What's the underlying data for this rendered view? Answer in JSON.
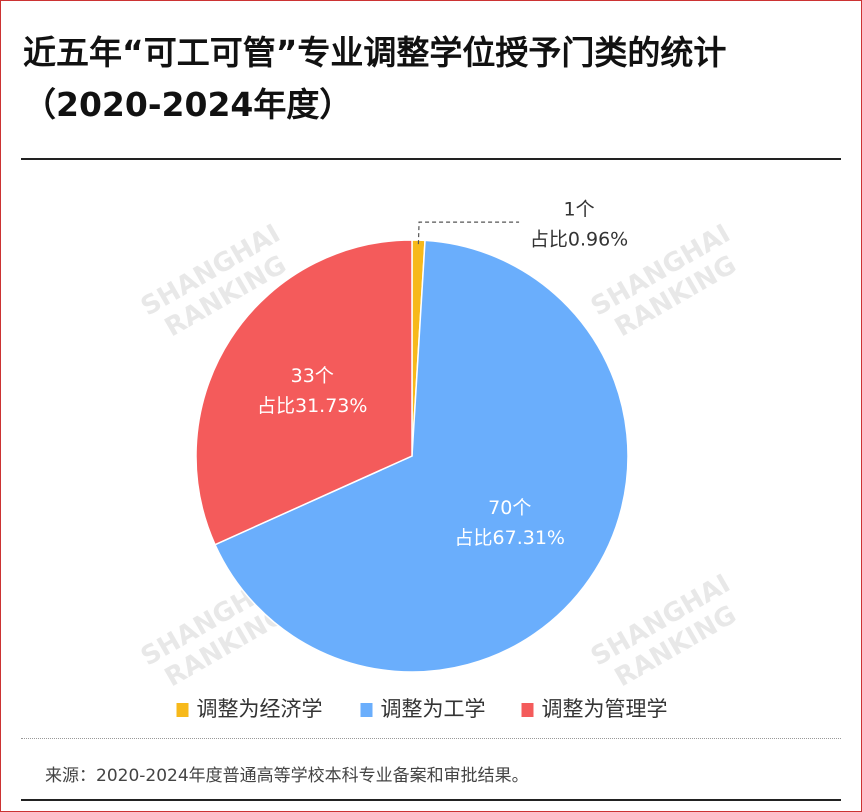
{
  "chart_data": {
    "type": "pie",
    "title": "近五年“可工可管”专业调整学位授予门类的统计（2020-2024年度）",
    "categories": [
      "调整为经济学",
      "调整为工学",
      "调整为管理学"
    ],
    "values": [
      1,
      70,
      33
    ],
    "value_labels": [
      "1个",
      "70个",
      "33个"
    ],
    "percent": [
      0.96,
      67.31,
      31.73
    ],
    "percent_labels": [
      "占比0.96%",
      "占比67.31%",
      "占比31.73%"
    ],
    "colors": [
      "#f7b91b",
      "#6aaefc",
      "#f45b5b"
    ],
    "legend": "bottom",
    "source": "来源：2020-2024年度普通高等学校本科专业备案和审批结果。",
    "watermark": [
      "SHANGHAI",
      "RANKING"
    ]
  }
}
